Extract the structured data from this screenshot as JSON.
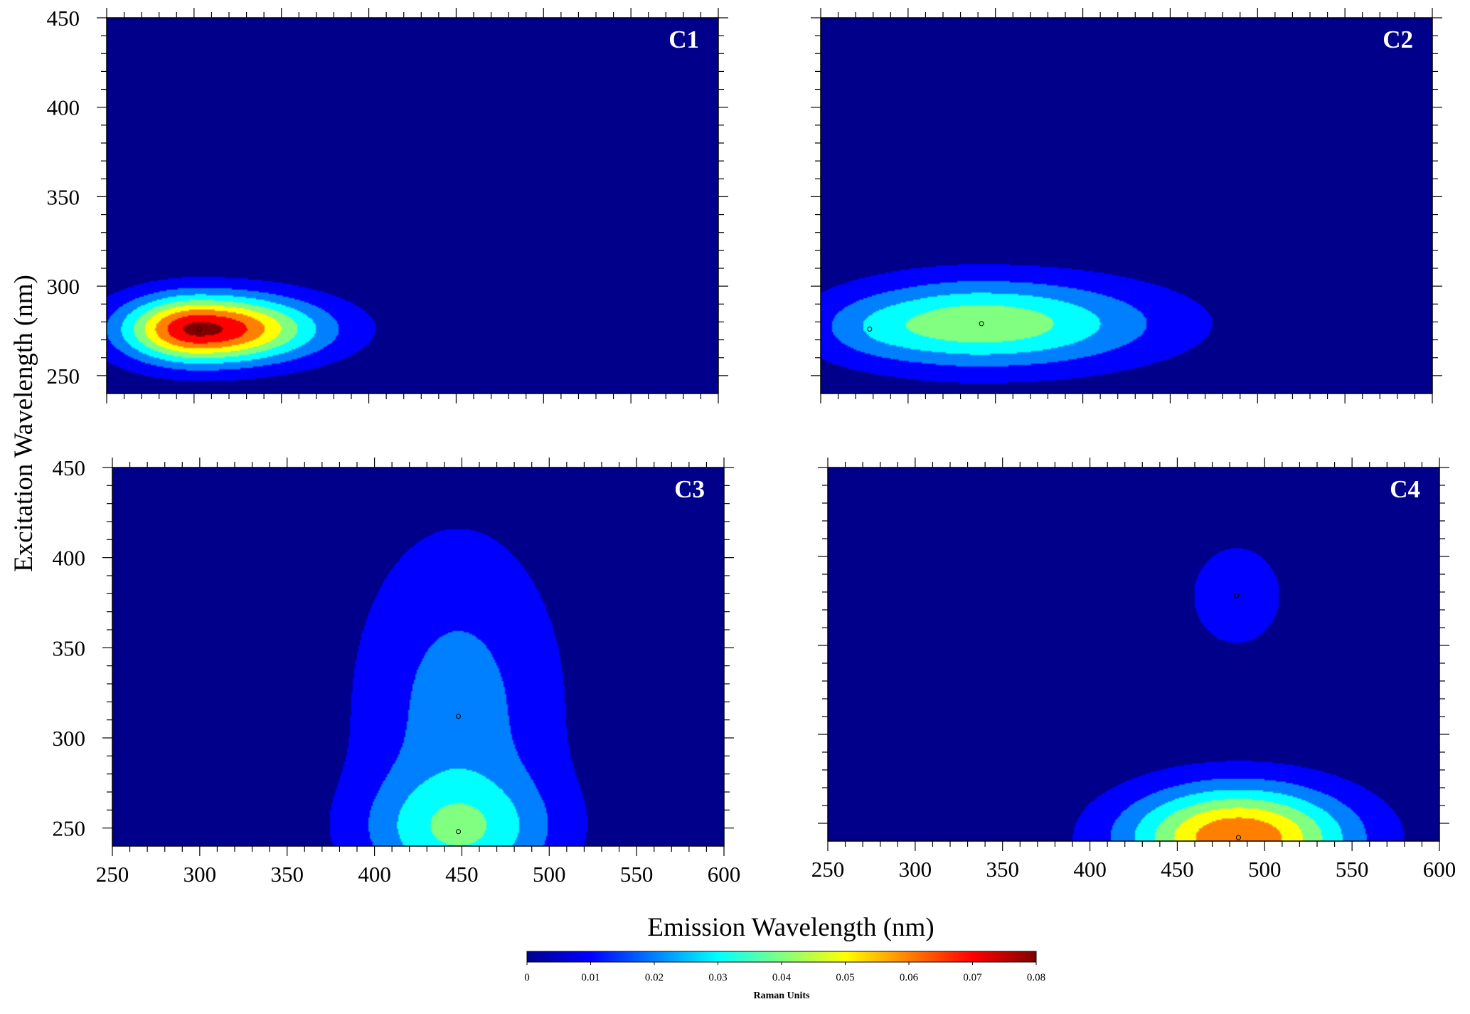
{
  "chart_data": {
    "type": "heatmap",
    "subtype": "contour",
    "xlabel": "Emission Wavelength (nm)",
    "ylabel": "Excitation Wavelength (nm)",
    "xlim": [
      250,
      600
    ],
    "ylim": [
      240,
      450
    ],
    "x_ticks": [
      250,
      300,
      350,
      400,
      450,
      500,
      550,
      600
    ],
    "y_ticks": [
      250,
      300,
      350,
      400,
      450
    ],
    "colorbar": {
      "title": "Raman Units",
      "range": [
        0,
        0.08
      ],
      "ticks": [
        "0",
        "0.01",
        "0.02",
        "0.03",
        "0.04",
        "0.05",
        "0.06",
        "0.07",
        "0.08"
      ],
      "colors": [
        "#00008f",
        "#0000ff",
        "#0080ff",
        "#00ffff",
        "#80ff80",
        "#ffff00",
        "#ff8000",
        "#ff0000",
        "#800000"
      ]
    },
    "background_color": "#00008b",
    "panels": [
      {
        "label": "C1",
        "peaks": [
          {
            "em": 303,
            "ex": 276,
            "intensity": 0.08,
            "em_width": 30,
            "ex_width": 13,
            "em_skew": 1.5
          }
        ]
      },
      {
        "label": "C2",
        "peaks": [
          {
            "em": 342,
            "ex": 279,
            "intensity": 0.044,
            "em_width": 52,
            "ex_width": 17,
            "em_skew": 1.3
          },
          {
            "em": 278,
            "ex": 276,
            "intensity": 0.008,
            "em_width": 24,
            "ex_width": 12,
            "em_skew": 1.0
          }
        ]
      },
      {
        "label": "C3",
        "peaks": [
          {
            "em": 448,
            "ex": 312,
            "intensity": 0.021,
            "em_width": 40,
            "ex_width": 68,
            "em_skew": 1.0
          },
          {
            "em": 448,
            "ex": 248,
            "intensity": 0.026,
            "em_width": 38,
            "ex_width": 22,
            "em_skew": 1.0
          }
        ]
      },
      {
        "label": "C4",
        "peaks": [
          {
            "em": 484,
            "ex": 378,
            "intensity": 0.012,
            "em_width": 22,
            "ex_width": 24,
            "em_skew": 1.0
          },
          {
            "em": 485,
            "ex": 242,
            "intensity": 0.066,
            "em_width": 44,
            "ex_width": 20,
            "em_skew": 1.0
          }
        ]
      }
    ]
  }
}
